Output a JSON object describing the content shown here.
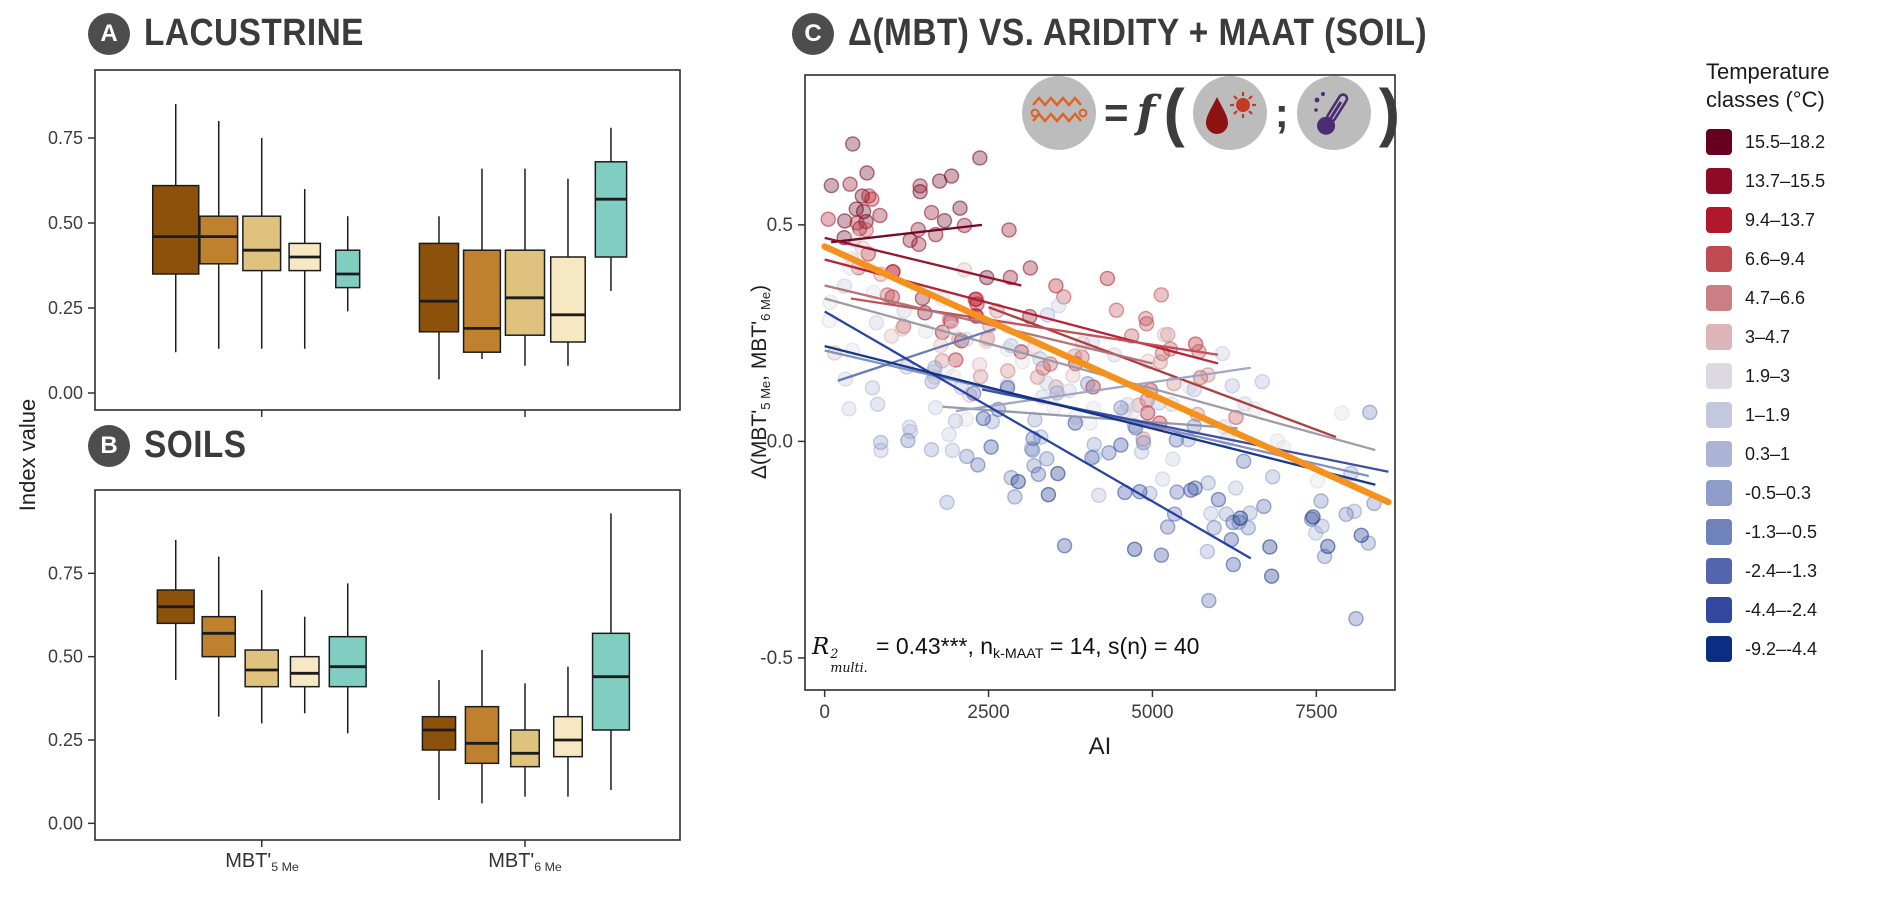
{
  "panels": {
    "A": {
      "badge": "A",
      "title": "Lacustrine"
    },
    "B": {
      "badge": "B",
      "title": "Soils"
    },
    "C": {
      "badge": "C",
      "title": "Δ(MBT) vs. Aridity + MAAT (Soil)"
    }
  },
  "axes": {
    "left_label": "Index value",
    "c_xlabel": "AI",
    "c_ylabel_parts": [
      {
        "t": "Δ(MBT'"
      },
      {
        "t": "5 Me",
        "sub": true
      },
      {
        "t": ", MBT'"
      },
      {
        "t": "6 Me",
        "sub": true
      },
      {
        "t": ")"
      }
    ],
    "x_group_labels": [
      [
        {
          "t": "MBT'"
        },
        {
          "t": "5 Me",
          "sub": true
        }
      ],
      [
        {
          "t": "MBT'"
        },
        {
          "t": "6 Me",
          "sub": true
        }
      ]
    ]
  },
  "annotation": {
    "parts": [
      {
        "t": "R",
        "i": true
      },
      {
        "stack": {
          "sup": "2",
          "sub": "multi."
        },
        "i": true
      },
      {
        "t": " = 0.43***, n"
      },
      {
        "t": "k-MAAT",
        "sub": true
      },
      {
        "t": " = 14, s(n) = 40"
      }
    ]
  },
  "icon_formula": {
    "eq": "=",
    "fn": "f",
    "open": "(",
    "semi": ";",
    "close": ")"
  },
  "chart_data": [
    {
      "id": "A",
      "type": "boxplot",
      "title": "Lacustrine",
      "ylabel": "Index value",
      "yticks": [
        0,
        0.25,
        0.5,
        0.75
      ],
      "ylim": [
        -0.05,
        0.95
      ],
      "categories": [
        "MBT'5Me",
        "MBT'6Me"
      ],
      "series_colors": [
        "#8c510a",
        "#bf812d",
        "#dfc27d",
        "#f6e8c3",
        "#80cdc1"
      ],
      "boxes": [
        {
          "group": 0,
          "series": 0,
          "low": 0.12,
          "q1": 0.35,
          "median": 0.46,
          "q3": 0.61,
          "high": 0.85,
          "w": 1.0
        },
        {
          "group": 0,
          "series": 1,
          "low": 0.13,
          "q1": 0.38,
          "median": 0.46,
          "q3": 0.52,
          "high": 0.8,
          "w": 0.82
        },
        {
          "group": 0,
          "series": 2,
          "low": 0.13,
          "q1": 0.36,
          "median": 0.42,
          "q3": 0.52,
          "high": 0.75,
          "w": 0.82
        },
        {
          "group": 0,
          "series": 3,
          "low": 0.13,
          "q1": 0.36,
          "median": 0.4,
          "q3": 0.44,
          "high": 0.6,
          "w": 0.68
        },
        {
          "group": 0,
          "series": 4,
          "low": 0.24,
          "q1": 0.31,
          "median": 0.35,
          "q3": 0.42,
          "high": 0.52,
          "w": 0.52
        },
        {
          "group": 1,
          "series": 0,
          "low": 0.04,
          "q1": 0.18,
          "median": 0.27,
          "q3": 0.44,
          "high": 0.52,
          "w": 0.85
        },
        {
          "group": 1,
          "series": 1,
          "low": 0.1,
          "q1": 0.12,
          "median": 0.19,
          "q3": 0.42,
          "high": 0.66,
          "w": 0.8
        },
        {
          "group": 1,
          "series": 2,
          "low": 0.08,
          "q1": 0.17,
          "median": 0.28,
          "q3": 0.42,
          "high": 0.66,
          "w": 0.85
        },
        {
          "group": 1,
          "series": 3,
          "low": 0.08,
          "q1": 0.15,
          "median": 0.23,
          "q3": 0.4,
          "high": 0.63,
          "w": 0.75
        },
        {
          "group": 1,
          "series": 4,
          "low": 0.3,
          "q1": 0.4,
          "median": 0.57,
          "q3": 0.68,
          "high": 0.78,
          "w": 0.68
        }
      ]
    },
    {
      "id": "B",
      "type": "boxplot",
      "title": "Soils",
      "ylabel": "Index value",
      "yticks": [
        0,
        0.25,
        0.5,
        0.75
      ],
      "ylim": [
        -0.05,
        1.0
      ],
      "categories": [
        "MBT'5Me",
        "MBT'6Me"
      ],
      "series_colors": [
        "#8c510a",
        "#bf812d",
        "#dfc27d",
        "#f6e8c3",
        "#80cdc1"
      ],
      "boxes": [
        {
          "group": 0,
          "series": 0,
          "low": 0.43,
          "q1": 0.6,
          "median": 0.65,
          "q3": 0.7,
          "high": 0.85,
          "w": 0.8
        },
        {
          "group": 0,
          "series": 1,
          "low": 0.32,
          "q1": 0.5,
          "median": 0.57,
          "q3": 0.62,
          "high": 0.8,
          "w": 0.72
        },
        {
          "group": 0,
          "series": 2,
          "low": 0.3,
          "q1": 0.41,
          "median": 0.46,
          "q3": 0.52,
          "high": 0.7,
          "w": 0.72
        },
        {
          "group": 0,
          "series": 3,
          "low": 0.33,
          "q1": 0.41,
          "median": 0.45,
          "q3": 0.5,
          "high": 0.62,
          "w": 0.62
        },
        {
          "group": 0,
          "series": 4,
          "low": 0.27,
          "q1": 0.41,
          "median": 0.47,
          "q3": 0.56,
          "high": 0.72,
          "w": 0.8
        },
        {
          "group": 1,
          "series": 0,
          "low": 0.07,
          "q1": 0.22,
          "median": 0.28,
          "q3": 0.32,
          "high": 0.43,
          "w": 0.72
        },
        {
          "group": 1,
          "series": 1,
          "low": 0.06,
          "q1": 0.18,
          "median": 0.24,
          "q3": 0.35,
          "high": 0.52,
          "w": 0.72
        },
        {
          "group": 1,
          "series": 2,
          "low": 0.08,
          "q1": 0.17,
          "median": 0.21,
          "q3": 0.28,
          "high": 0.42,
          "w": 0.62
        },
        {
          "group": 1,
          "series": 3,
          "low": 0.08,
          "q1": 0.2,
          "median": 0.25,
          "q3": 0.32,
          "high": 0.47,
          "w": 0.62
        },
        {
          "group": 1,
          "series": 4,
          "low": 0.1,
          "q1": 0.28,
          "median": 0.44,
          "q3": 0.57,
          "high": 0.93,
          "w": 0.8
        }
      ]
    },
    {
      "id": "C",
      "type": "scatter",
      "title": "Δ(MBT) vs. Aridity + MAAT (Soil)",
      "xlabel": "AI",
      "ylabel": "Δ(MBT'5Me, MBT'6Me)",
      "xlim": [
        -300,
        8700
      ],
      "xticks": [
        0,
        2500,
        5000,
        7500
      ],
      "ylim": [
        -0.574,
        0.846
      ],
      "yticks": [
        -0.5,
        0,
        0.5
      ],
      "stats_text": "R²multi. = 0.43***, nk-MAAT = 14, s(n) = 40",
      "legend": {
        "title": "Temperature classes (°C)",
        "classes": [
          {
            "label": "15.5–18.2",
            "color": "#67001f"
          },
          {
            "label": "13.7–15.5",
            "color": "#8e0b25"
          },
          {
            "label": "9.4–13.7",
            "color": "#b2182b"
          },
          {
            "label": "6.6–9.4",
            "color": "#bf4a51"
          },
          {
            "label": "4.7–6.6",
            "color": "#c97f84"
          },
          {
            "label": "3–4.7",
            "color": "#ddb4b7"
          },
          {
            "label": "1.9–3",
            "color": "#dcdae0"
          },
          {
            "label": "1–1.9",
            "color": "#c3c8de"
          },
          {
            "label": "0.3–1",
            "color": "#aab4d6"
          },
          {
            "label": "-0.5–0.3",
            "color": "#8d9cc8"
          },
          {
            "label": "-1.3–-0.5",
            "color": "#7082bc"
          },
          {
            "label": "-2.4–-1.3",
            "color": "#5366ad"
          },
          {
            "label": "-4.4–-2.4",
            "color": "#33479f"
          },
          {
            "label": "-9.2–-4.4",
            "color": "#0c2d84"
          }
        ]
      },
      "overall_fit": {
        "x": [
          0,
          8600
        ],
        "y": [
          0.45,
          -0.14
        ],
        "color": "#f5921e",
        "stroke_width": 6.5
      },
      "class_fits": [
        {
          "class": 0,
          "x": [
            100,
            2400
          ],
          "y": [
            0.46,
            0.5
          ],
          "color": "#67001f"
        },
        {
          "class": 1,
          "x": [
            0,
            3000
          ],
          "y": [
            0.47,
            0.36
          ],
          "color": "#8e0b25"
        },
        {
          "class": 2,
          "x": [
            0,
            6000
          ],
          "y": [
            0.42,
            0.18
          ],
          "color": "#b2182b"
        },
        {
          "class": 3,
          "x": [
            2500,
            7800
          ],
          "y": [
            0.31,
            0.01
          ],
          "color": "#a93437"
        },
        {
          "class": 4,
          "x": [
            400,
            6000
          ],
          "y": [
            0.33,
            0.2
          ],
          "color": "#bf4a51"
        },
        {
          "class": 5,
          "x": [
            0,
            5000
          ],
          "y": [
            0.36,
            0.18
          ],
          "color": "#b06f74"
        },
        {
          "class": 6,
          "x": [
            0,
            8400
          ],
          "y": [
            0.33,
            -0.02
          ],
          "color": "#9a97a0"
        },
        {
          "class": 7,
          "x": [
            1800,
            6300
          ],
          "y": [
            0.08,
            0.03
          ],
          "color": "#8f94a8"
        },
        {
          "class": 8,
          "x": [
            2000,
            6500
          ],
          "y": [
            0.07,
            0.17
          ],
          "color": "#9aa3c4"
        },
        {
          "class": 9,
          "x": [
            0,
            8300
          ],
          "y": [
            0.21,
            -0.08
          ],
          "color": "#7c8bbd"
        },
        {
          "class": 10,
          "x": [
            200,
            2600
          ],
          "y": [
            0.14,
            0.26
          ],
          "color": "#5f74b4"
        },
        {
          "class": 11,
          "x": [
            0,
            6500
          ],
          "y": [
            0.3,
            -0.27
          ],
          "color": "#1d3a9e"
        },
        {
          "class": 12,
          "x": [
            2400,
            8600
          ],
          "y": [
            0.12,
            -0.07
          ],
          "color": "#33479f"
        },
        {
          "class": 13,
          "x": [
            0,
            8400
          ],
          "y": [
            0.22,
            -0.1
          ],
          "color": "#0c2d84"
        }
      ],
      "points_gen": {
        "seed": 20,
        "clusters": [
          {
            "class": 0,
            "n": 16,
            "x": [
              100,
              2600
            ],
            "y": [
              0.62,
              0.48
            ],
            "noise": 0.12,
            "bias": 1.3
          },
          {
            "class": 1,
            "n": 18,
            "x": [
              0,
              3200
            ],
            "y": [
              0.52,
              0.35
            ],
            "noise": 0.13,
            "bias": 1.2
          },
          {
            "class": 2,
            "n": 24,
            "x": [
              0,
              6000
            ],
            "y": [
              0.45,
              0.15
            ],
            "noise": 0.12,
            "bias": 1.5
          },
          {
            "class": 3,
            "n": 20,
            "x": [
              200,
              6400
            ],
            "y": [
              0.38,
              0.16
            ],
            "noise": 0.12,
            "bias": 1.3
          },
          {
            "class": 4,
            "n": 18,
            "x": [
              300,
              6200
            ],
            "y": [
              0.33,
              0.12
            ],
            "noise": 0.12,
            "bias": 1.2
          },
          {
            "class": 5,
            "n": 16,
            "x": [
              0,
              5200
            ],
            "y": [
              0.34,
              0.14
            ],
            "noise": 0.12,
            "bias": 1.1
          },
          {
            "class": 6,
            "n": 30,
            "x": [
              0,
              8400
            ],
            "y": [
              0.3,
              -0.04
            ],
            "noise": 0.14,
            "bias": 1.2
          },
          {
            "class": 7,
            "n": 24,
            "x": [
              300,
              7000
            ],
            "y": [
              0.22,
              0.0
            ],
            "noise": 0.14,
            "bias": 1.1
          },
          {
            "class": 8,
            "n": 22,
            "x": [
              400,
              7600
            ],
            "y": [
              0.16,
              -0.08
            ],
            "noise": 0.15,
            "bias": 1.0
          },
          {
            "class": 9,
            "n": 22,
            "x": [
              800,
              8200
            ],
            "y": [
              0.12,
              -0.14
            ],
            "noise": 0.16,
            "bias": 1.0
          },
          {
            "class": 10,
            "n": 20,
            "x": [
              1200,
              8400
            ],
            "y": [
              0.06,
              -0.18
            ],
            "noise": 0.16,
            "bias": 1.0
          },
          {
            "class": 11,
            "n": 18,
            "x": [
              1800,
              8600
            ],
            "y": [
              0.02,
              -0.24
            ],
            "noise": 0.15,
            "bias": 1.0
          },
          {
            "class": 12,
            "n": 14,
            "x": [
              2200,
              8600
            ],
            "y": [
              -0.02,
              -0.28
            ],
            "noise": 0.14,
            "bias": 1.0
          },
          {
            "class": 13,
            "n": 10,
            "x": [
              2800,
              8600
            ],
            "y": [
              -0.05,
              -0.32
            ],
            "noise": 0.13,
            "bias": 1.0
          }
        ]
      }
    }
  ]
}
